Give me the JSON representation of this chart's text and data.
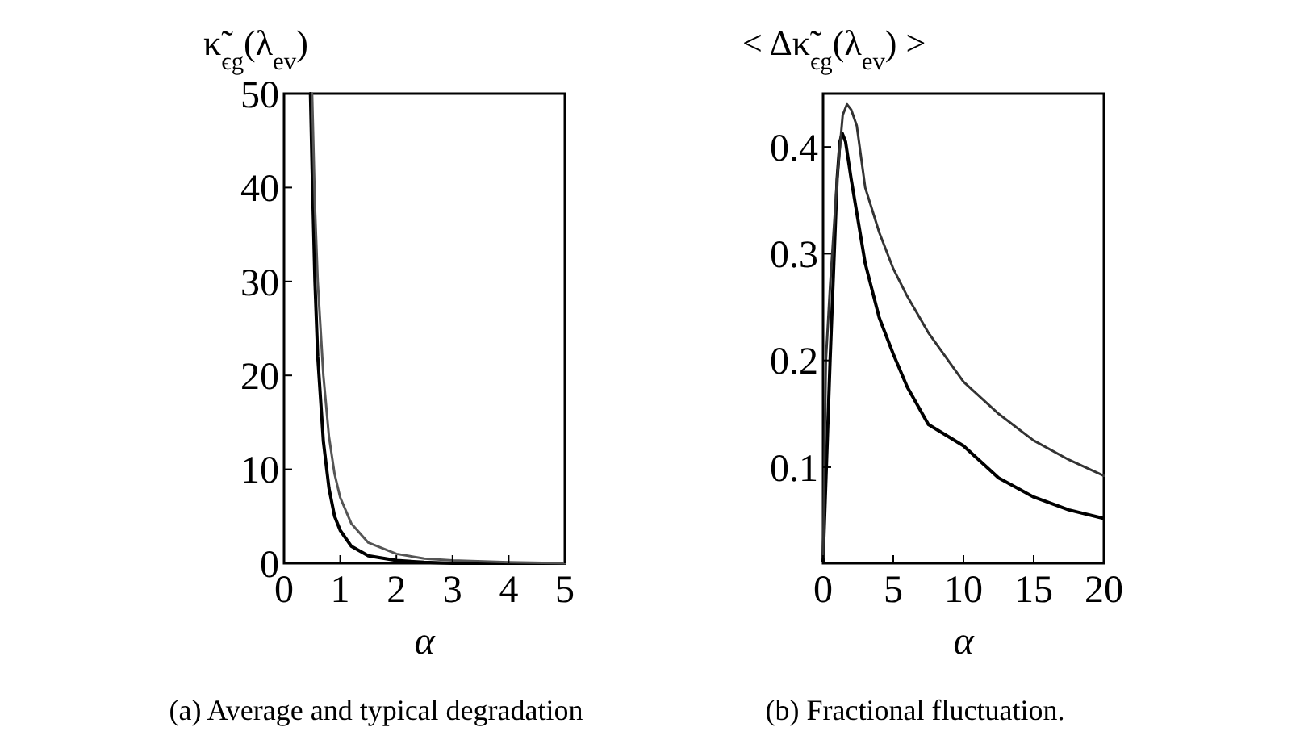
{
  "chart_data": [
    {
      "type": "line",
      "ylabel": "κ̃$_{ϵg}$(λ$_{ev}$)",
      "xlabel": "α",
      "annotations": [
        "(a) Average and typical degradation"
      ],
      "xlim": [
        0,
        5
      ],
      "ylim": [
        0,
        50
      ],
      "xticks": [
        0,
        1,
        2,
        3,
        4,
        5
      ],
      "yticks": [
        0,
        10,
        20,
        30,
        40,
        50
      ],
      "line_style": "solid",
      "series": [
        {
          "color": "#000000",
          "x": [
            0.47,
            0.5,
            0.55,
            0.6,
            0.7,
            0.8,
            0.9,
            1,
            1.2,
            1.5,
            2,
            2.5,
            3,
            4,
            5
          ],
          "values": [
            50,
            42,
            30,
            22,
            13,
            8,
            5,
            3.5,
            1.8,
            0.8,
            0.3,
            0.1,
            0,
            0,
            0
          ]
        },
        {
          "color": "#555555",
          "x": [
            0.5,
            0.55,
            0.6,
            0.7,
            0.8,
            0.9,
            1,
            1.2,
            1.5,
            2,
            2.5,
            3,
            4,
            5
          ],
          "values": [
            50,
            38,
            30,
            20,
            13.5,
            9.5,
            7,
            4.2,
            2.2,
            1,
            0.5,
            0.3,
            0.1,
            0
          ]
        }
      ]
    },
    {
      "type": "line",
      "ylabel": "< Δκ̃$_{ϵg}$(λ$_{ev}$) >",
      "xlabel": "α",
      "annotations": [
        "(b) Fractional fluctuation."
      ],
      "xlim": [
        0,
        20
      ],
      "ylim": [
        0.01,
        0.45
      ],
      "xticks": [
        0,
        5,
        10,
        15,
        20
      ],
      "yticks": [
        0.1,
        0.2,
        0.3,
        0.4
      ],
      "line_style": "solid",
      "series": [
        {
          "color": "#000000",
          "x": [
            0,
            0.5,
            1,
            1.2,
            1.36,
            1.6,
            2,
            3,
            4,
            5,
            6,
            7.5,
            10,
            12.5,
            15,
            17.5,
            20
          ],
          "values": [
            0.012,
            0.2,
            0.37,
            0.405,
            0.413,
            0.405,
            0.37,
            0.291,
            0.24,
            0.206,
            0.175,
            0.14,
            0.12,
            0.09,
            0.072,
            0.06,
            0.052
          ]
        },
        {
          "color": "#333333",
          "x": [
            0,
            0.2,
            0.5,
            1,
            1.4,
            1.7,
            2,
            2.4,
            3,
            4,
            5,
            6,
            7.5,
            10,
            12.5,
            15,
            17.5,
            20
          ],
          "values": [
            0.015,
            0.2,
            0.27,
            0.37,
            0.43,
            0.44,
            0.435,
            0.42,
            0.362,
            0.32,
            0.286,
            0.26,
            0.226,
            0.18,
            0.15,
            0.125,
            0.107,
            0.092
          ]
        }
      ]
    }
  ]
}
